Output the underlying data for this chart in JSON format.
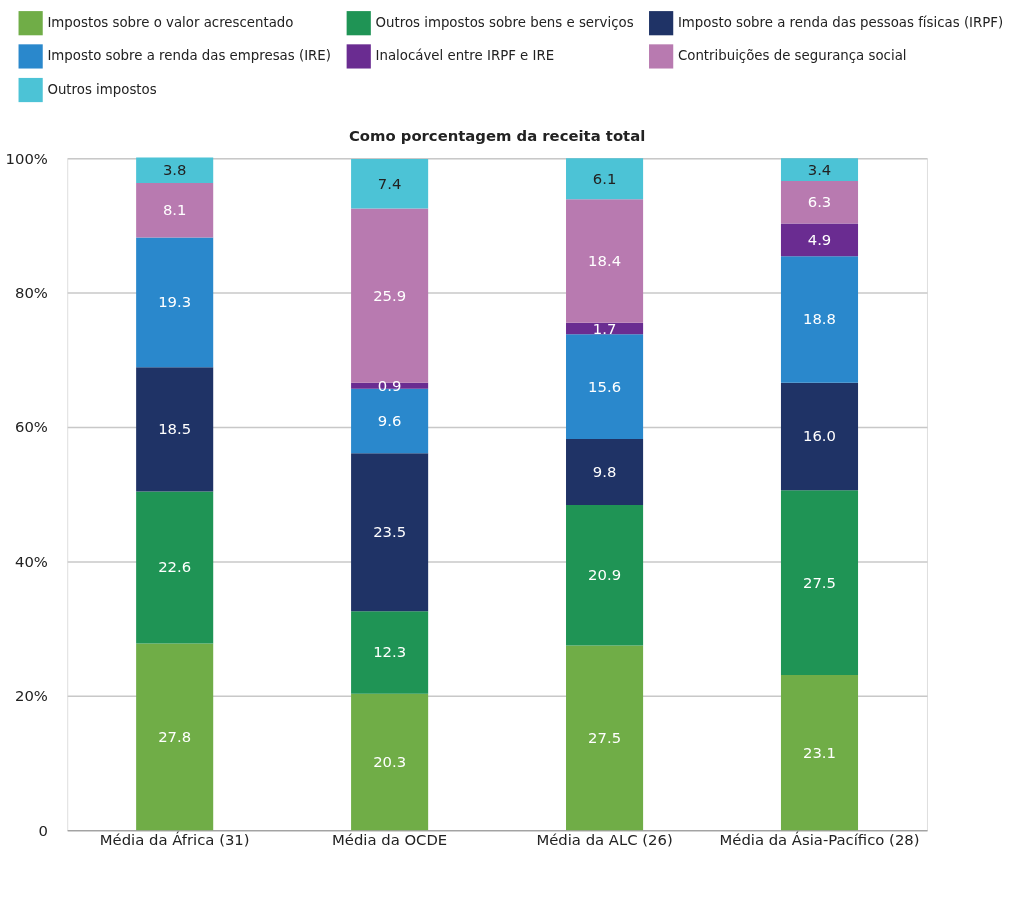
{
  "chart_data": {
    "type": "bar",
    "stacked": true,
    "title": "Como porcentagem da receita total",
    "categories": [
      "Média da África (31)",
      "Média da OCDE",
      "Média da ALC (26)",
      "Média da Ásia-Pacífico (28)"
    ],
    "series": [
      {
        "name": "Impostos sobre o valor acrescentado",
        "color": "#70ad47",
        "values": [
          27.8,
          20.3,
          27.5,
          23.1
        ],
        "value_labels": [
          "27.8",
          "20.3",
          "27.5",
          "23.1"
        ]
      },
      {
        "name": "Outros impostos sobre bens e serviços",
        "color": "#1f9455",
        "values": [
          22.6,
          12.3,
          20.9,
          27.5
        ],
        "value_labels": [
          "22.6",
          "12.3",
          "20.9",
          "27.5"
        ]
      },
      {
        "name": "Imposto sobre a renda das pessoas físicas (IRPF)",
        "color": "#1f3366",
        "values": [
          18.5,
          23.5,
          9.8,
          16.0
        ],
        "value_labels": [
          "18.5",
          "23.5",
          "9.8",
          "16.0"
        ]
      },
      {
        "name": "Imposto sobre a renda das empresas (IRE)",
        "color": "#2a88cc",
        "values": [
          19.3,
          9.6,
          15.6,
          18.8
        ],
        "value_labels": [
          "19.3",
          "9.6",
          "15.6",
          "18.8"
        ]
      },
      {
        "name": "Inalocável entre IRPF e IRE",
        "color": "#6a2c91",
        "values": [
          null,
          0.9,
          1.7,
          4.9
        ],
        "value_labels": [
          null,
          "0.9",
          "1.7",
          "4.9"
        ]
      },
      {
        "name": "Contribuições de segurança social",
        "color": "#b87ab0",
        "values": [
          8.1,
          25.9,
          18.4,
          6.3
        ],
        "value_labels": [
          "8.1",
          "25.9",
          "18.4",
          "6.3"
        ]
      },
      {
        "name": "Outros impostos",
        "color": "#4cc3d6",
        "values": [
          3.8,
          7.4,
          6.1,
          3.4
        ],
        "value_labels": [
          "3.8",
          "7.4",
          "6.1",
          "3.4"
        ]
      }
    ],
    "ylim": [
      0,
      100
    ],
    "yticks": [
      0,
      {
        "value": 20,
        "label": "20%"
      },
      {
        "value": 40,
        "label": "40%"
      },
      {
        "value": 60,
        "label": "60%"
      },
      {
        "value": 80,
        "label": "80%"
      },
      {
        "value": 100,
        "label": "100%"
      }
    ],
    "grid": "y",
    "legend": "top"
  }
}
